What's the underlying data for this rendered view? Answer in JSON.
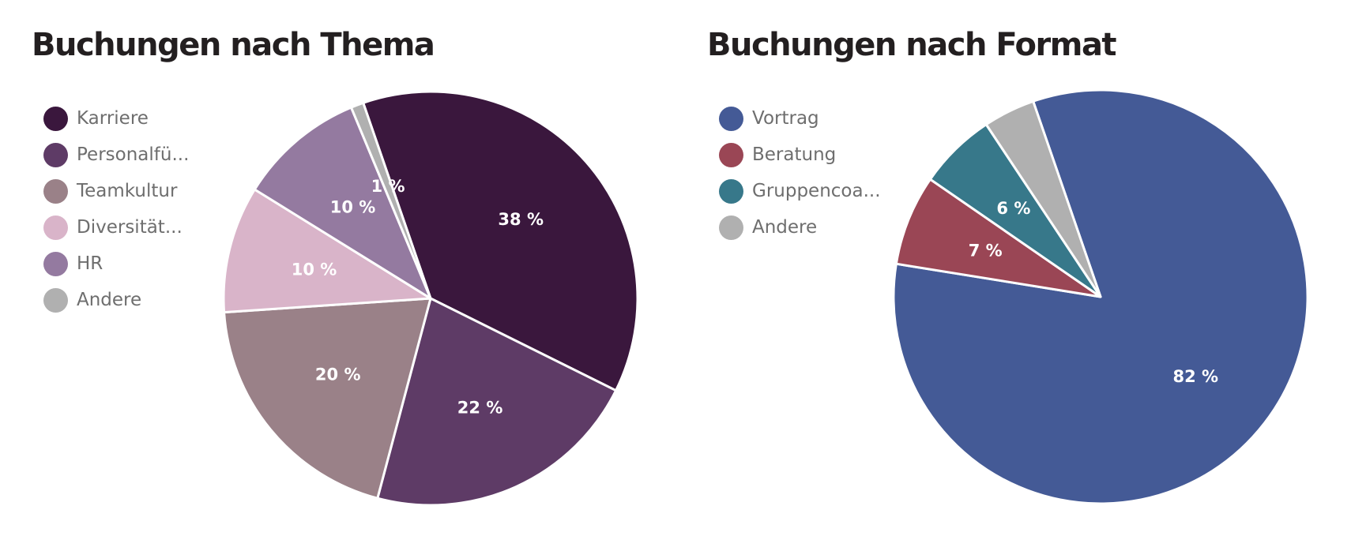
{
  "chart_data": [
    {
      "type": "pie",
      "title": "Buchungen nach Thema",
      "start_angle_deg": -19,
      "direction": "clockwise",
      "slices": [
        {
          "name": "Karriere",
          "value": 38,
          "label": "38 %",
          "color": "#3a173d"
        },
        {
          "name": "Personalfü...",
          "value": 22,
          "label": "22 %",
          "color": "#5e3b66"
        },
        {
          "name": "Teamkultur",
          "value": 20,
          "label": "20 %",
          "color": "#9a8188"
        },
        {
          "name": "Diversität...",
          "value": 10,
          "label": "10 %",
          "color": "#d9b4c9"
        },
        {
          "name": "HR",
          "value": 10,
          "label": "10 %",
          "color": "#947aa0"
        },
        {
          "name": "Andere",
          "value": 1,
          "label": "1 %",
          "color": "#b0b0b0"
        }
      ]
    },
    {
      "type": "pie",
      "title": "Buchungen nach Format",
      "start_angle_deg": -19,
      "direction": "clockwise",
      "slices": [
        {
          "name": "Vortrag",
          "value": 82,
          "label": "82 %",
          "color": "#445a96"
        },
        {
          "name": "Beratung",
          "value": 7,
          "label": "7 %",
          "color": "#9a4655"
        },
        {
          "name": "Gruppencoa...",
          "value": 6,
          "label": "6 %",
          "color": "#37788a"
        },
        {
          "name": "Andere",
          "value": 4,
          "label": "",
          "color": "#b0b0b0"
        }
      ]
    }
  ]
}
